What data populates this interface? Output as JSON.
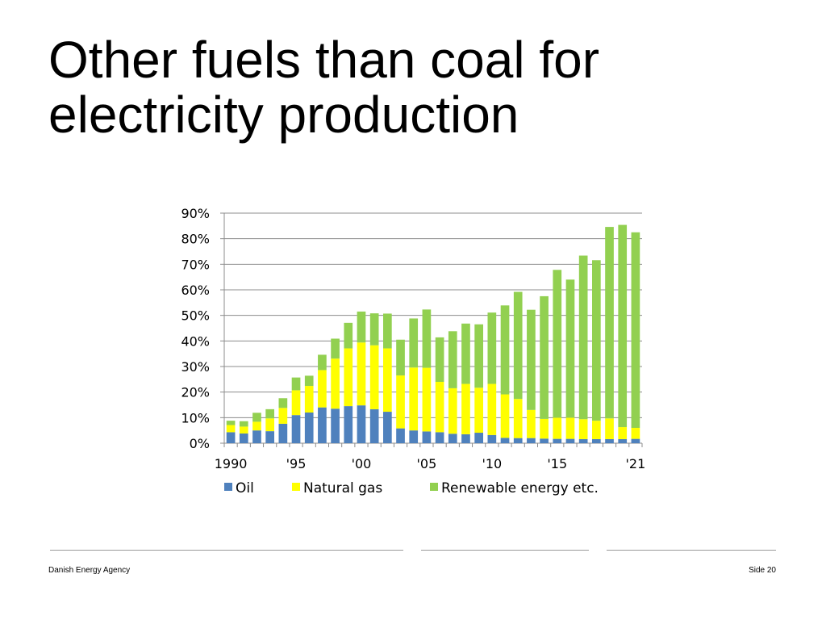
{
  "slide": {
    "title_line1": "Other fuels than coal for",
    "title_line2": "electricity production",
    "footer_left": "Danish Energy Agency",
    "footer_right": "Side 20"
  },
  "chart_data": {
    "type": "bar",
    "stacked": true,
    "title": "",
    "xlabel": "",
    "ylabel": "",
    "ylim": [
      0,
      90
    ],
    "y_unit": "%",
    "y_ticks": [
      "0%",
      "10%",
      "20%",
      "30%",
      "40%",
      "50%",
      "60%",
      "70%",
      "80%",
      "90%"
    ],
    "grid": true,
    "legend_position": "bottom",
    "categories": [
      "1990",
      "1991",
      "1992",
      "1993",
      "1994",
      "1995",
      "1996",
      "1997",
      "1998",
      "1999",
      "2000",
      "2001",
      "2002",
      "2003",
      "2004",
      "2005",
      "2006",
      "2007",
      "2008",
      "2009",
      "2010",
      "2011",
      "2012",
      "2013",
      "2014",
      "2015",
      "2016",
      "2017",
      "2018",
      "2019",
      "2020",
      "2021"
    ],
    "x_tick_labels": [
      {
        "index": 0,
        "label": "1990"
      },
      {
        "index": 5,
        "label": "'95"
      },
      {
        "index": 10,
        "label": "'00"
      },
      {
        "index": 15,
        "label": "'05"
      },
      {
        "index": 20,
        "label": "'10"
      },
      {
        "index": 25,
        "label": "'15"
      },
      {
        "index": 31,
        "label": "'21"
      }
    ],
    "series": [
      {
        "name": "Oil",
        "color": "#4f81bd",
        "values": [
          4.3,
          3.8,
          5.0,
          4.7,
          7.6,
          11.0,
          12.0,
          14.0,
          13.5,
          14.5,
          14.8,
          13.3,
          12.3,
          5.8,
          5.0,
          4.6,
          4.3,
          3.7,
          3.5,
          4.1,
          3.2,
          2.1,
          2.0,
          2.0,
          1.8,
          1.7,
          1.7,
          1.6,
          1.6,
          1.6,
          1.6,
          1.7
        ]
      },
      {
        "name": "Natural gas",
        "color": "#ffff00",
        "values": [
          2.8,
          2.7,
          3.4,
          5.0,
          6.2,
          9.7,
          10.4,
          14.6,
          19.6,
          22.6,
          24.6,
          25.0,
          24.8,
          20.7,
          24.6,
          24.9,
          19.7,
          17.8,
          19.7,
          17.6,
          20.0,
          17.0,
          15.3,
          11.0,
          7.7,
          8.3,
          8.3,
          7.8,
          7.2,
          8.1,
          4.7,
          4.3
        ]
      },
      {
        "name": "Renewable energy etc.",
        "color": "#92d050",
        "values": [
          1.7,
          2.1,
          3.5,
          3.6,
          3.8,
          5.0,
          4.0,
          6.0,
          7.8,
          10.0,
          12.1,
          12.5,
          13.6,
          14.0,
          19.2,
          22.8,
          17.4,
          22.3,
          23.6,
          24.8,
          27.9,
          34.8,
          41.9,
          39.2,
          48.0,
          57.8,
          54.0,
          64.0,
          62.8,
          74.9,
          79.1,
          76.5
        ]
      }
    ]
  }
}
